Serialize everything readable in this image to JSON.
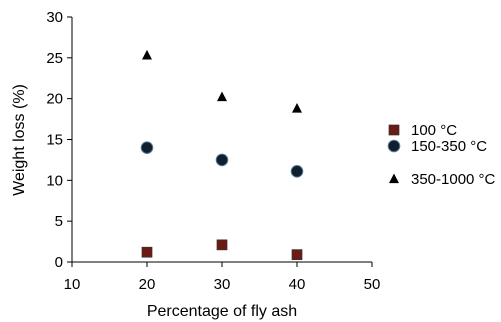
{
  "chart_data": {
    "type": "scatter",
    "title": "",
    "xlabel": "Percentage of fly ash",
    "ylabel": "Weight loss (%)",
    "xlim": [
      10,
      50
    ],
    "ylim": [
      0,
      30
    ],
    "xticks": [
      "10",
      "20",
      "30",
      "40",
      "50"
    ],
    "yticks": [
      "0",
      "5",
      "10",
      "15",
      "20",
      "25",
      "30"
    ],
    "grid": false,
    "legend_position": "right",
    "series": [
      {
        "name": "100 °C",
        "marker": "square",
        "color": "#6b1a14",
        "points": [
          {
            "x": 20,
            "y": 1.2
          },
          {
            "x": 30,
            "y": 2.1
          },
          {
            "x": 40,
            "y": 0.9
          }
        ]
      },
      {
        "name": "150-350 °C",
        "marker": "circle",
        "color": "#0f1f2e",
        "points": [
          {
            "x": 20,
            "y": 14.0
          },
          {
            "x": 30,
            "y": 12.5
          },
          {
            "x": 40,
            "y": 11.1
          }
        ]
      },
      {
        "name": "350-1000 °C",
        "marker": "triangle",
        "color": "#000000",
        "points": [
          {
            "x": 20,
            "y": 25.3
          },
          {
            "x": 30,
            "y": 20.2
          },
          {
            "x": 40,
            "y": 18.8
          }
        ]
      }
    ]
  }
}
